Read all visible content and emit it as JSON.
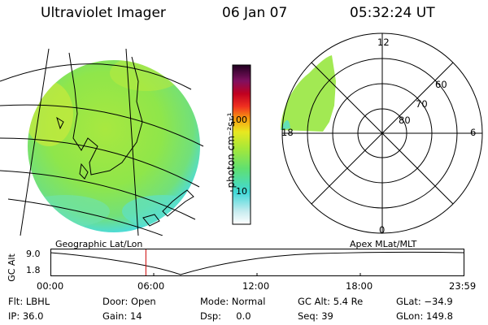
{
  "header": {
    "title": "Ultraviolet Imager",
    "date": "06 Jan 07",
    "time": "05:32:24 UT"
  },
  "colorbar": {
    "unit_label": "photon cm⁻²s⁻¹",
    "ticks": [
      "100",
      "10"
    ]
  },
  "polar": {
    "labels": {
      "top": "12",
      "bottom": "0",
      "left": "18",
      "right": "6",
      "lat60": "60",
      "lat70": "70",
      "lat80": "80"
    }
  },
  "timeline": {
    "left_title": "Geographic Lat/Lon",
    "right_title": "Apex MLat/MLT",
    "ylabel": "GC Alt",
    "y_ticks": [
      "9.0",
      "1.8"
    ],
    "x_ticks": [
      "00:00",
      "06:00",
      "12:00",
      "18:00",
      "23:59"
    ],
    "current_time_hours": 5.54
  },
  "info": {
    "flt": "Flt: LBHL",
    "ip": "IP: 36.0",
    "door": "Door: Open",
    "gain": "Gain: 14",
    "mode": "Mode: Normal",
    "dsp": "Dsp:     0.0",
    "gcalt": "GC Alt: 5.4 Re",
    "seq": "Seq: 39",
    "glat": "GLat: −34.9",
    "glon": "GLon: 149.8"
  },
  "colors": {
    "image_fill": "#9de84a",
    "image_edge": "#4fe0d8",
    "marker": "#cc0000"
  }
}
